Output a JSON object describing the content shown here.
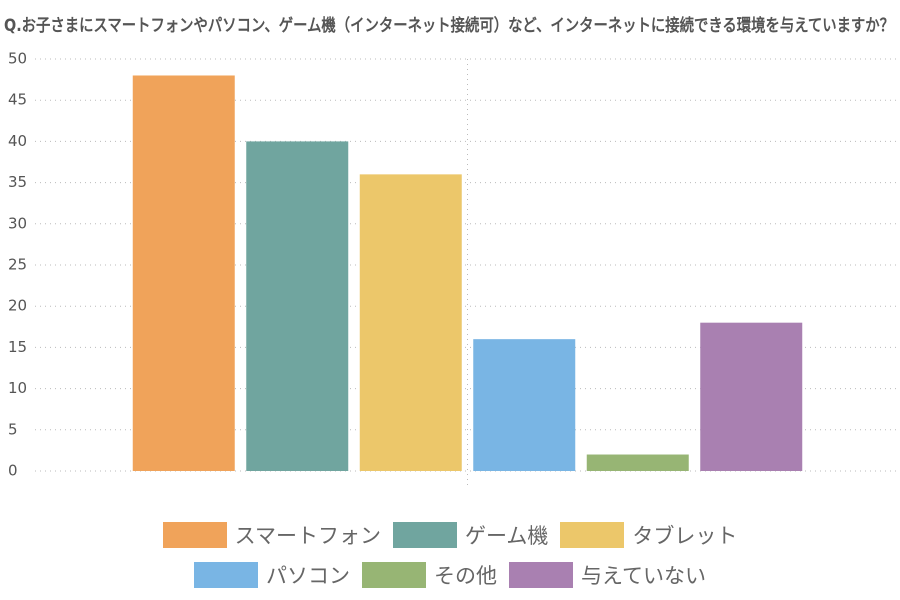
{
  "chart_data": {
    "type": "bar",
    "title": "Q.お子さまにスマートフォンやパソコン、ゲーム機（インターネット接続可）など、インターネットに接続できる環境を与えていますか？",
    "categories": [
      null
    ],
    "series": [
      {
        "name": "スマートフォン",
        "color": "#f0a35a",
        "values": [
          48
        ]
      },
      {
        "name": "ゲーム機",
        "color": "#70a59f",
        "values": [
          40
        ]
      },
      {
        "name": "タブレット",
        "color": "#ecc76a",
        "values": [
          36
        ]
      },
      {
        "name": "パソコン",
        "color": "#79b5e4",
        "values": [
          16
        ]
      },
      {
        "name": "その他",
        "color": "#97b574",
        "values": [
          2
        ]
      },
      {
        "name": "与えていない",
        "color": "#a980b1",
        "values": [
          18
        ]
      }
    ],
    "ylim": [
      0,
      50
    ],
    "yticks": [
      0,
      5,
      10,
      15,
      20,
      25,
      30,
      35,
      40,
      45,
      50
    ],
    "grid": true,
    "legend": "bottom"
  }
}
